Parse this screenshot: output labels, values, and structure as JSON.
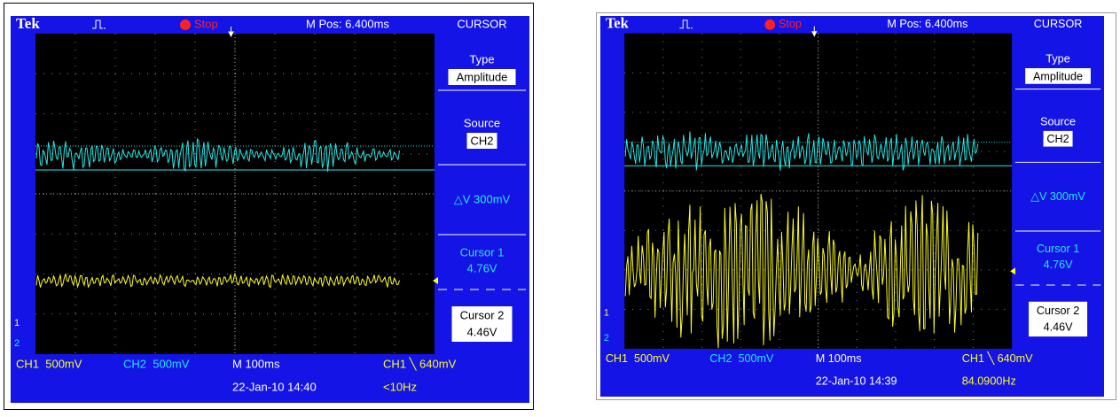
{
  "scopes": [
    {
      "brand": "Tek",
      "status": "Stop",
      "m_pos": "M Pos: 6.400ms",
      "menu": {
        "title": "CURSOR",
        "type_label": "Type",
        "type_value": "Amplitude",
        "source_label": "Source",
        "source_value": "CH2",
        "delta": "△V 300mV",
        "cursor1_label": "Cursor 1",
        "cursor1_value": "4.76V",
        "cursor2_label": "Cursor 2",
        "cursor2_value": "4.46V"
      },
      "ch1_marker": "1",
      "ch2_marker": "2",
      "ch1": "CH1  500mV",
      "ch2": "CH2  500mV",
      "timebase": "M 100ms",
      "trigger": "CH1 ╲ 640mV",
      "date": "22-Jan-10 14:40",
      "freq": "<10Hz"
    },
    {
      "brand": "Tek",
      "status": "Stop",
      "m_pos": "M Pos: 6.400ms",
      "menu": {
        "title": "CURSOR",
        "type_label": "Type",
        "type_value": "Amplitude",
        "source_label": "Source",
        "source_value": "CH2",
        "delta": "△V 300mV",
        "cursor1_label": "Cursor 1",
        "cursor1_value": "4.76V",
        "cursor2_label": "Cursor 2",
        "cursor2_value": "4.46V"
      },
      "ch1_marker": "1",
      "ch2_marker": "2",
      "ch1": "CH1  500mV",
      "ch2": "CH2  500mV",
      "timebase": "M 100ms",
      "trigger": "CH1 ╲ 640mV",
      "date": "22-Jan-10 14:39",
      "freq": "84.0900Hz"
    }
  ]
}
